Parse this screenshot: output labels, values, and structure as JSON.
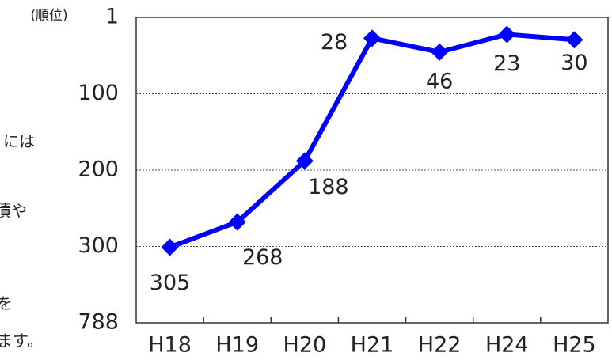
{
  "chart_data": {
    "type": "line",
    "y_label": "(順位)",
    "categories": [
      "H18",
      "H19",
      "H20",
      "H21",
      "H22",
      "H24",
      "H25"
    ],
    "series": [
      {
        "name": "順位",
        "color": "#0000ff",
        "values": [
          305,
          268,
          188,
          28,
          46,
          23,
          30
        ]
      }
    ],
    "ylim": [
      788,
      1
    ],
    "yticks": [
      1,
      100,
      200,
      300,
      788
    ],
    "y_scale": "piecewise-even-ticks",
    "grid": true,
    "data_labels": true
  },
  "side_text": [
    "には",
    "債や",
    "を",
    "ます。"
  ]
}
